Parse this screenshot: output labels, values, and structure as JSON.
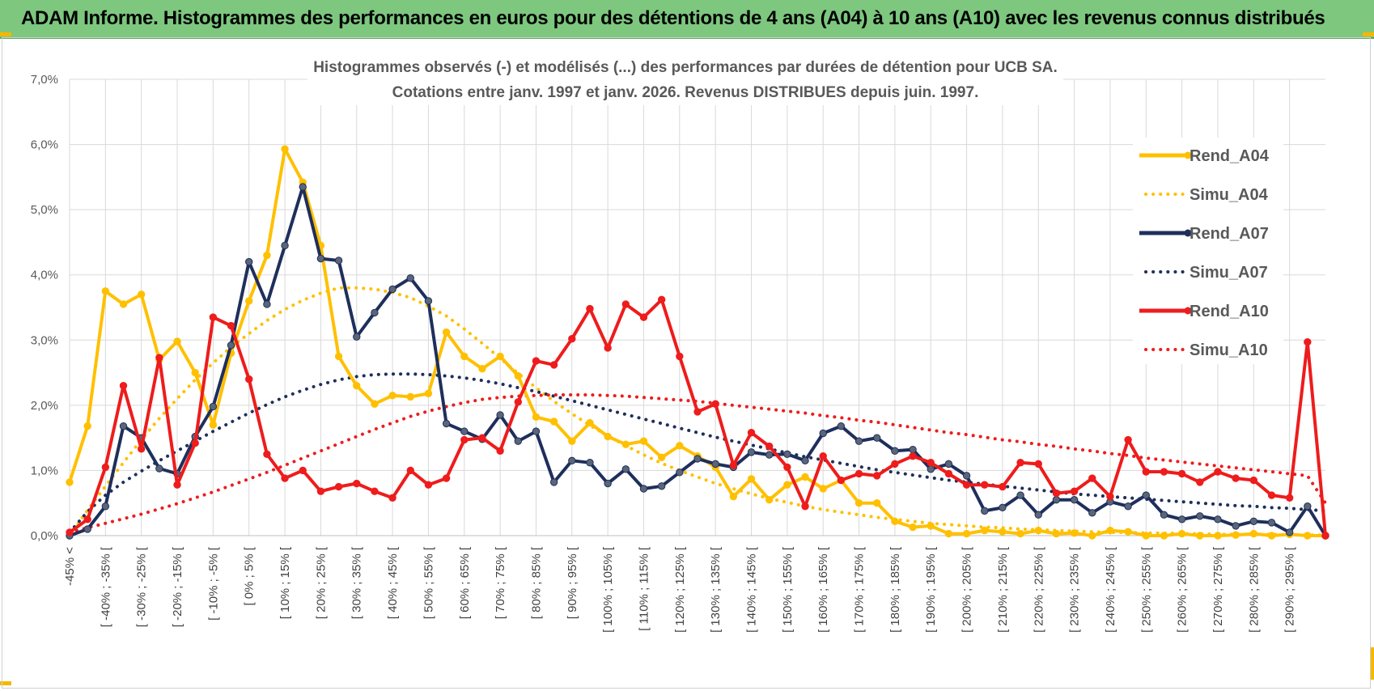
{
  "banner": {
    "title": "ADAM Informe. Histogrammes des performances en euros pour des détentions de 4 ans (A04) à 10 ans (A10) avec les revenus connus distribués"
  },
  "colors": {
    "banner_bg": "#7dc77f",
    "accent": "#f5b700",
    "a04": "#ffc000",
    "a07": "#1f2f5c",
    "a10": "#ee1c1c",
    "grid": "#d9d9d9"
  },
  "chart_data": {
    "type": "line",
    "title_lines": [
      "Histogrammes observés (-) et modélisés (...) des performances par durées de détention pour UCB SA.",
      "Cotations entre janv. 1997 et janv. 2026. Revenus DISTRIBUES depuis juin. 1997."
    ],
    "ylim": [
      0,
      7
    ],
    "yticks": [
      "0,0%",
      "1,0%",
      "2,0%",
      "3,0%",
      "4,0%",
      "5,0%",
      "6,0%",
      "7,0%"
    ],
    "xlabels": [
      "-45% <",
      "[ -40% ; -35% [",
      "[ -30% ; -25% [",
      "[ -20% ; -15% [",
      "[ -10% ; -5% [",
      "[ 0% ; 5% [",
      "[ 10% ; 15% [",
      "[ 20% ; 25% [",
      "[ 30% ; 35% [",
      "[ 40% ; 45% [",
      "[ 50% ; 55% [",
      "[ 60% ; 65% [",
      "[ 70% ; 75% [",
      "[ 80% ; 85% [",
      "[ 90% ; 95% [",
      "[ 100% ; 105% [",
      "[ 110% ; 115% [",
      "[ 120% ; 125% [",
      "[ 130% ; 135% [",
      "[ 140% ; 145% [",
      "[ 150% ; 155% [",
      "[ 160% ; 165% [",
      "[ 170% ; 175% [",
      "[ 180% ; 185% [",
      "[ 190% ; 195% [",
      "[ 200% ; 205% [",
      "[ 210% ; 215% [",
      "[ 220% ; 225% [",
      "[ 230% ; 235% [",
      "[ 240% ; 245% [",
      "[ 250% ; 255% [",
      "[ 260% ; 265% [",
      "[ 270% ; 275% [",
      "[ 280% ; 285% [",
      "[ 290% ; 295% ["
    ],
    "xlabel_every": 2,
    "bins_count": 71,
    "series": [
      {
        "name": "Rend_A04",
        "style": "solid",
        "color": "#ffc000",
        "values": [
          0.82,
          1.68,
          3.75,
          3.55,
          3.7,
          2.7,
          2.98,
          2.5,
          1.7,
          2.8,
          3.6,
          4.3,
          5.93,
          5.42,
          4.45,
          2.75,
          2.3,
          2.02,
          2.15,
          2.13,
          2.18,
          3.12,
          2.75,
          2.56,
          2.75,
          2.45,
          1.82,
          1.75,
          1.45,
          1.73,
          1.52,
          1.4,
          1.45,
          1.2,
          1.38,
          1.22,
          1.05,
          0.6,
          0.87,
          0.55,
          0.78,
          0.9,
          0.72,
          0.85,
          0.5,
          0.5,
          0.22,
          0.13,
          0.15,
          0.03,
          0.03,
          0.08,
          0.06,
          0.03,
          0.08,
          0.03,
          0.04,
          0.0,
          0.08,
          0.06,
          0.0,
          0.0,
          0.03,
          0.0,
          0.0,
          0.01,
          0.03,
          0.0,
          0.02,
          0.0,
          0.0
        ]
      },
      {
        "name": "Simu_A04",
        "style": "dotted",
        "color": "#ffc000",
        "values": [
          0.0,
          0.39,
          0.76,
          1.12,
          1.47,
          1.8,
          2.1,
          2.39,
          2.65,
          2.89,
          3.1,
          3.3,
          3.47,
          3.61,
          3.72,
          3.8,
          3.8,
          3.78,
          3.73,
          3.65,
          3.52,
          3.37,
          3.17,
          2.95,
          2.72,
          2.49,
          2.27,
          2.06,
          1.87,
          1.69,
          1.53,
          1.38,
          1.24,
          1.11,
          1.0,
          0.9,
          0.8,
          0.72,
          0.64,
          0.57,
          0.51,
          0.45,
          0.4,
          0.36,
          0.32,
          0.28,
          0.25,
          0.22,
          0.19,
          0.17,
          0.15,
          0.13,
          0.12,
          0.1,
          0.09,
          0.08,
          0.07,
          0.06,
          0.05,
          0.05,
          0.04,
          0.04,
          0.03,
          0.03,
          0.02,
          0.02,
          0.02,
          0.02,
          0.01,
          0.01,
          0.01
        ]
      },
      {
        "name": "Rend_A07",
        "style": "solid",
        "color": "#1f2f5c",
        "values": [
          0.0,
          0.1,
          0.45,
          1.68,
          1.5,
          1.03,
          0.95,
          1.52,
          1.98,
          2.92,
          4.2,
          3.55,
          4.45,
          5.35,
          4.25,
          4.22,
          3.05,
          3.42,
          3.78,
          3.95,
          3.6,
          1.72,
          1.6,
          1.48,
          1.85,
          1.45,
          1.6,
          0.82,
          1.15,
          1.12,
          0.8,
          1.02,
          0.72,
          0.76,
          0.97,
          1.18,
          1.1,
          1.05,
          1.28,
          1.24,
          1.25,
          1.15,
          1.57,
          1.68,
          1.45,
          1.5,
          1.3,
          1.32,
          1.02,
          1.1,
          0.92,
          0.38,
          0.43,
          0.62,
          0.32,
          0.55,
          0.55,
          0.35,
          0.52,
          0.45,
          0.62,
          0.32,
          0.25,
          0.3,
          0.25,
          0.15,
          0.22,
          0.2,
          0.05,
          0.45,
          0.0
        ]
      },
      {
        "name": "Simu_A07",
        "style": "dotted",
        "color": "#1f2f5c",
        "values": [
          0.05,
          0.37,
          0.62,
          0.82,
          0.99,
          1.15,
          1.3,
          1.45,
          1.6,
          1.74,
          1.88,
          2.01,
          2.13,
          2.23,
          2.32,
          2.39,
          2.44,
          2.47,
          2.48,
          2.48,
          2.47,
          2.45,
          2.42,
          2.38,
          2.33,
          2.27,
          2.21,
          2.14,
          2.07,
          2.0,
          1.93,
          1.86,
          1.79,
          1.72,
          1.65,
          1.58,
          1.51,
          1.45,
          1.39,
          1.33,
          1.27,
          1.21,
          1.16,
          1.11,
          1.06,
          1.01,
          0.97,
          0.93,
          0.89,
          0.85,
          0.82,
          0.79,
          0.76,
          0.73,
          0.7,
          0.67,
          0.64,
          0.62,
          0.6,
          0.58,
          0.56,
          0.54,
          0.52,
          0.5,
          0.48,
          0.46,
          0.45,
          0.43,
          0.42,
          0.4,
          0.38
        ]
      },
      {
        "name": "Rend_A10",
        "style": "solid",
        "color": "#ee1c1c",
        "values": [
          0.05,
          0.25,
          1.05,
          2.3,
          1.33,
          2.73,
          0.78,
          1.42,
          3.35,
          3.22,
          2.4,
          1.25,
          0.88,
          1.0,
          0.68,
          0.75,
          0.8,
          0.68,
          0.58,
          1.0,
          0.78,
          0.88,
          1.47,
          1.5,
          1.3,
          2.05,
          2.68,
          2.62,
          3.02,
          3.48,
          2.88,
          3.55,
          3.35,
          3.62,
          2.75,
          1.9,
          2.02,
          1.08,
          1.58,
          1.37,
          1.05,
          0.45,
          1.22,
          0.85,
          0.95,
          0.92,
          1.1,
          1.22,
          1.12,
          0.95,
          0.78,
          0.78,
          0.75,
          1.12,
          1.1,
          0.65,
          0.68,
          0.88,
          0.6,
          1.47,
          0.98,
          0.98,
          0.95,
          0.82,
          0.98,
          0.88,
          0.85,
          0.62,
          0.58,
          2.97,
          0.0
        ]
      },
      {
        "name": "Simu_A10",
        "style": "dotted",
        "color": "#ee1c1c",
        "values": [
          0.05,
          0.12,
          0.19,
          0.26,
          0.33,
          0.41,
          0.49,
          0.58,
          0.67,
          0.77,
          0.87,
          0.97,
          1.08,
          1.19,
          1.3,
          1.41,
          1.52,
          1.63,
          1.73,
          1.83,
          1.91,
          1.98,
          2.04,
          2.09,
          2.12,
          2.14,
          2.15,
          2.16,
          2.16,
          2.16,
          2.15,
          2.14,
          2.12,
          2.1,
          2.08,
          2.06,
          2.03,
          2.0,
          1.97,
          1.94,
          1.91,
          1.88,
          1.84,
          1.81,
          1.77,
          1.74,
          1.7,
          1.66,
          1.62,
          1.58,
          1.55,
          1.51,
          1.47,
          1.44,
          1.4,
          1.37,
          1.33,
          1.3,
          1.26,
          1.23,
          1.19,
          1.16,
          1.13,
          1.1,
          1.07,
          1.04,
          1.01,
          0.98,
          0.95,
          0.92,
          0.5
        ]
      }
    ],
    "legend": {
      "position": "right",
      "items": [
        "Rend_A04",
        "Simu_A04",
        "Rend_A07",
        "Simu_A07",
        "Rend_A10",
        "Simu_A10"
      ]
    }
  }
}
